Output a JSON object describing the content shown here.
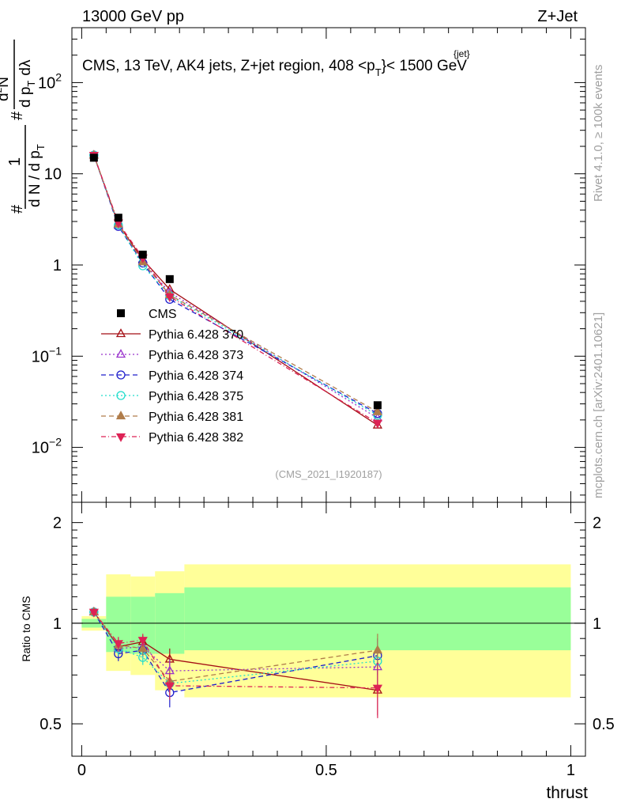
{
  "header": {
    "left": "13000 GeV pp",
    "right": "Z+Jet"
  },
  "side_labels": {
    "top": "Rivet 4.1.0, ≥ 100k events",
    "bottom": "mcplots.cern.ch [arXiv:2401.10621]"
  },
  "chart_data": {
    "type": "line",
    "title": "CMS, 13 TeV, AK4 jets, Z+jet region, 408 <p_T^{jet}< 1500 GeV",
    "title_parts": {
      "prefix": "CMS, 13 TeV, AK4 jets, Z+jet region, 408 <p",
      "sup": "{jet}",
      "sub": "T",
      "suffix": "}< 1500 GeV"
    },
    "watermark": "(CMS_2021_I1920187)",
    "xlabel": "thrust",
    "ylabel_upper": "1 / (dN/dpT) · d²N / (dpT dλ)",
    "ylabel_upper_parts": {
      "hash": "#",
      "one": "1",
      "dn": "d N / d p",
      "t": "T",
      "d2n": "d",
      "two": "2",
      "n": "N",
      "dpt": "d p",
      "dlam": "dλ"
    },
    "ylabel_lower": "Ratio to CMS",
    "xlim": [
      -0.02,
      1.03
    ],
    "ylim_upper": [
      0.0025,
      400
    ],
    "ylim_lower": [
      0.4,
      2.3
    ],
    "x_ticks": [
      {
        "value": 0,
        "label": "0"
      },
      {
        "value": 0.5,
        "label": "0.5"
      },
      {
        "value": 1,
        "label": "1"
      }
    ],
    "y_ticks_upper": [
      {
        "value": 0.01,
        "base": "10",
        "exp": "−2"
      },
      {
        "value": 0.1,
        "base": "10",
        "exp": "−1"
      },
      {
        "value": 1,
        "base": "1",
        "exp": ""
      },
      {
        "value": 10,
        "base": "10",
        "exp": ""
      },
      {
        "value": 100,
        "base": "10",
        "exp": "2"
      }
    ],
    "y_ticks_lower": [
      {
        "value": 0.5,
        "label": "0.5"
      },
      {
        "value": 1,
        "label": "1"
      },
      {
        "value": 2,
        "label": "2"
      }
    ],
    "bins": [
      [
        0,
        0.05
      ],
      [
        0.05,
        0.1
      ],
      [
        0.1,
        0.15
      ],
      [
        0.15,
        0.21
      ],
      [
        0.21,
        1.0
      ]
    ],
    "x": [
      0.025,
      0.075,
      0.125,
      0.18,
      0.605
    ],
    "band_inner": [
      [
        0.97,
        1.03
      ],
      [
        0.82,
        1.2
      ],
      [
        0.81,
        1.2
      ],
      [
        0.81,
        1.23
      ],
      [
        0.83,
        1.28
      ]
    ],
    "band_outer": [
      [
        0.95,
        1.05
      ],
      [
        0.72,
        1.4
      ],
      [
        0.7,
        1.38
      ],
      [
        0.63,
        1.43
      ],
      [
        0.6,
        1.5
      ]
    ],
    "data": {
      "name": "CMS",
      "color": "#000000",
      "marker": "square",
      "values": [
        15.0,
        3.3,
        1.3,
        0.7,
        0.029
      ]
    },
    "series": [
      {
        "name": "Pythia 6.428 370",
        "color": "#a50f15",
        "marker": "triangle-up-open",
        "dash": "",
        "values": [
          16.0,
          2.8,
          1.15,
          0.54,
          0.0175
        ],
        "ratio": [
          1.08,
          0.85,
          0.88,
          0.78,
          0.63
        ],
        "ratio_err": [
          0.02,
          0.04,
          0.04,
          0.06,
          0.1
        ]
      },
      {
        "name": "Pythia 6.428 373",
        "color": "#9933cc",
        "marker": "triangle-up-open",
        "dash": "2,3",
        "values": [
          16.0,
          2.7,
          1.08,
          0.5,
          0.021
        ],
        "ratio": [
          1.08,
          0.84,
          0.85,
          0.72,
          0.74
        ],
        "ratio_err": [
          0.02,
          0.04,
          0.04,
          0.06,
          0.1
        ]
      },
      {
        "name": "Pythia 6.428 374",
        "color": "#1f1fcc",
        "marker": "circle-open",
        "dash": "6,4",
        "values": [
          16.0,
          2.65,
          1.05,
          0.42,
          0.0235
        ],
        "ratio": [
          1.08,
          0.81,
          0.83,
          0.62,
          0.8
        ],
        "ratio_err": [
          0.02,
          0.04,
          0.04,
          0.06,
          0.1
        ]
      },
      {
        "name": "Pythia 6.428 375",
        "color": "#22ddcc",
        "marker": "circle-open",
        "dash": "2,3",
        "values": [
          16.0,
          2.75,
          0.98,
          0.46,
          0.0225
        ],
        "ratio": [
          1.08,
          0.84,
          0.79,
          0.66,
          0.77
        ],
        "ratio_err": [
          0.02,
          0.04,
          0.04,
          0.06,
          0.1
        ]
      },
      {
        "name": "Pythia 6.428 381",
        "color": "#b07c4a",
        "marker": "triangle-up-filled",
        "dash": "6,4",
        "values": [
          16.0,
          2.8,
          1.08,
          0.47,
          0.0245
        ],
        "ratio": [
          1.08,
          0.86,
          0.84,
          0.67,
          0.83
        ],
        "ratio_err": [
          0.02,
          0.04,
          0.04,
          0.06,
          0.1
        ]
      },
      {
        "name": "Pythia 6.428 382",
        "color": "#dd2255",
        "marker": "triangle-down-filled",
        "dash": "6,3,1,3",
        "values": [
          16.0,
          2.9,
          1.2,
          0.45,
          0.0185
        ],
        "ratio": [
          1.08,
          0.87,
          0.89,
          0.65,
          0.64
        ],
        "ratio_err": [
          0.02,
          0.04,
          0.04,
          0.06,
          0.12
        ]
      }
    ]
  }
}
